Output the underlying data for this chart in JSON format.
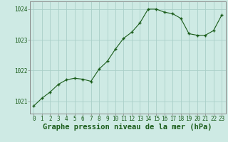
{
  "x": [
    0,
    1,
    2,
    3,
    4,
    5,
    6,
    7,
    8,
    9,
    10,
    11,
    12,
    13,
    14,
    15,
    16,
    17,
    18,
    19,
    20,
    21,
    22,
    23
  ],
  "y": [
    1020.85,
    1021.1,
    1021.3,
    1021.55,
    1021.7,
    1021.75,
    1021.72,
    1021.65,
    1022.05,
    1022.3,
    1022.7,
    1023.05,
    1023.25,
    1023.55,
    1024.0,
    1024.0,
    1023.9,
    1023.85,
    1023.7,
    1023.2,
    1023.15,
    1023.15,
    1023.3,
    1023.8
  ],
  "title": "Graphe pression niveau de la mer (hPa)",
  "bg_color": "#ceeae4",
  "line_color": "#1a5c1a",
  "marker_color": "#1a5c1a",
  "grid_major_color": "#aacfc8",
  "grid_minor_color": "#c0deda",
  "ylim": [
    1020.6,
    1024.25
  ],
  "yticks": [
    1021,
    1022,
    1023,
    1024
  ],
  "xticks": [
    0,
    1,
    2,
    3,
    4,
    5,
    6,
    7,
    8,
    9,
    10,
    11,
    12,
    13,
    14,
    15,
    16,
    17,
    18,
    19,
    20,
    21,
    22,
    23
  ],
  "tick_fontsize": 5.5,
  "label_fontsize": 7.5,
  "label_fontweight": "bold",
  "spine_color": "#888888"
}
